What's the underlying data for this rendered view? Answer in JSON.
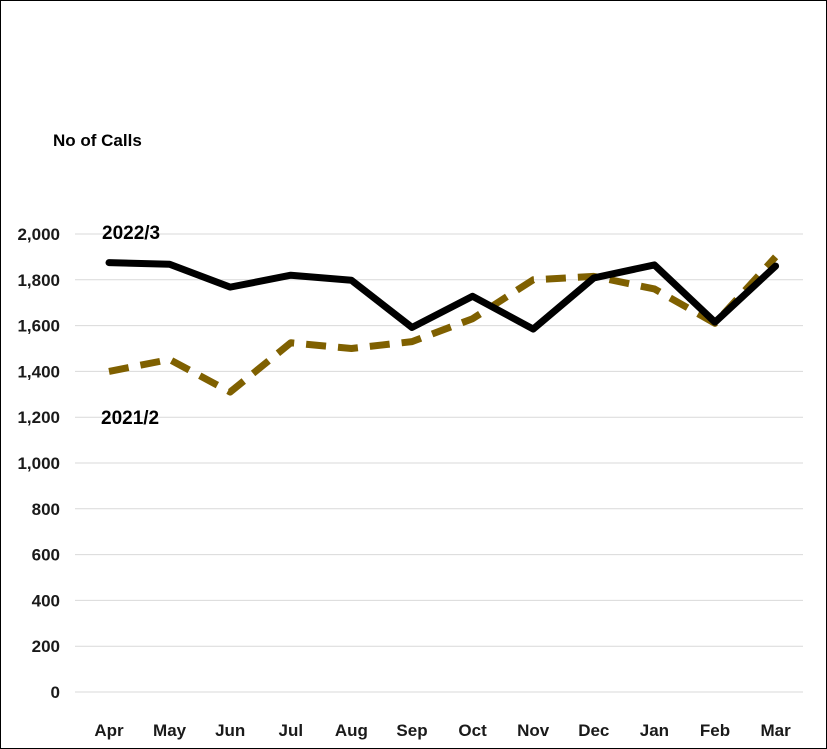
{
  "chart_data": {
    "type": "line",
    "title": "",
    "ylabel": "No  of Calls",
    "xlabel": "",
    "ylim": [
      0,
      2000
    ],
    "y_ticks": [
      0,
      200,
      400,
      600,
      800,
      1000,
      1200,
      1400,
      1600,
      1800,
      2000
    ],
    "y_tick_labels": [
      "0",
      "200",
      "400",
      "600",
      "800",
      "1,000",
      "1,200",
      "1,400",
      "1,600",
      "1,800",
      "2,000"
    ],
    "grid": true,
    "legend": "none",
    "categories": [
      "Apr",
      "May",
      "Jun",
      "Jul",
      "Aug",
      "Sep",
      "Oct",
      "Nov",
      "Dec",
      "Jan",
      "Feb",
      "Mar"
    ],
    "series": [
      {
        "name": "2022/3",
        "style": "solid",
        "color": "#000000",
        "values": [
          1875,
          1868,
          1768,
          1820,
          1798,
          1592,
          1728,
          1585,
          1808,
          1865,
          1615,
          1860
        ]
      },
      {
        "name": "2021/2",
        "style": "dashed",
        "color": "#7f6000",
        "values": [
          1400,
          1452,
          1310,
          1525,
          1500,
          1530,
          1630,
          1800,
          1815,
          1760,
          1610,
          1900
        ]
      }
    ]
  }
}
